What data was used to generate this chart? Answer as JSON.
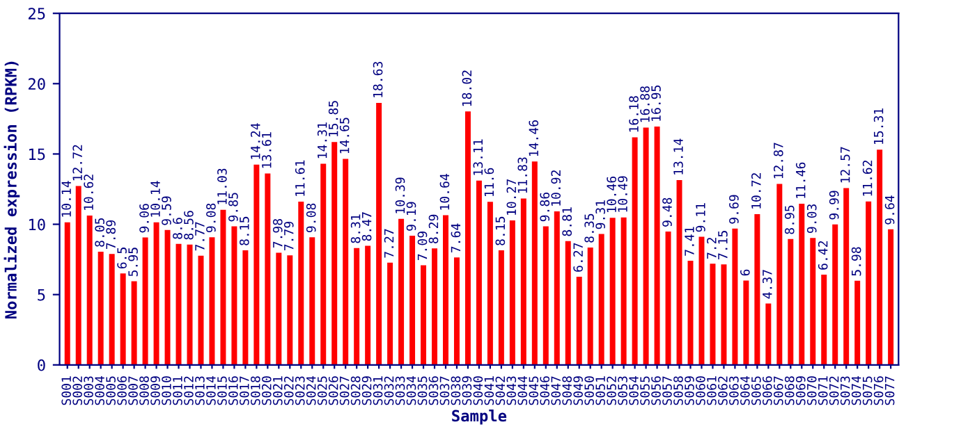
{
  "chart_data": {
    "type": "bar",
    "xlabel": "Sample",
    "ylabel": "Normalized expression (RPKM)",
    "categories": [
      "S001",
      "S002",
      "S003",
      "S004",
      "S005",
      "S006",
      "S007",
      "S008",
      "S009",
      "S010",
      "S011",
      "S012",
      "S013",
      "S014",
      "S015",
      "S016",
      "S017",
      "S018",
      "S020",
      "S021",
      "S022",
      "S023",
      "S024",
      "S025",
      "S026",
      "S027",
      "S028",
      "S029",
      "S031",
      "S032",
      "S033",
      "S034",
      "S035",
      "S036",
      "S037",
      "S038",
      "S039",
      "S040",
      "S041",
      "S042",
      "S043",
      "S044",
      "S045",
      "S046",
      "S047",
      "S048",
      "S049",
      "S050",
      "S051",
      "S052",
      "S053",
      "S054",
      "S055",
      "S056",
      "S057",
      "S058",
      "S059",
      "S060",
      "S061",
      "S062",
      "S063",
      "S064",
      "S065",
      "S066",
      "S067",
      "S068",
      "S069",
      "S070",
      "S071",
      "S072",
      "S073",
      "S074",
      "S075",
      "S076",
      "S077"
    ],
    "values": [
      10.14,
      12.72,
      10.62,
      8.05,
      7.89,
      6.5,
      5.95,
      9.06,
      10.14,
      9.59,
      8.6,
      8.56,
      7.77,
      9.08,
      11.03,
      9.85,
      8.15,
      14.24,
      13.61,
      7.98,
      7.79,
      11.61,
      9.08,
      14.31,
      15.85,
      14.65,
      8.31,
      8.47,
      18.63,
      7.27,
      10.39,
      9.19,
      7.09,
      8.29,
      10.64,
      7.64,
      18.02,
      13.11,
      11.6,
      8.15,
      10.27,
      11.83,
      14.46,
      9.86,
      10.92,
      8.81,
      6.27,
      8.35,
      9.31,
      10.46,
      10.49,
      16.18,
      16.88,
      16.95,
      9.48,
      13.14,
      7.41,
      9.11,
      7.2,
      7.15,
      9.69,
      6,
      10.72,
      4.37,
      12.87,
      8.95,
      11.46,
      9.03,
      6.42,
      9.99,
      12.57,
      5.98,
      11.62,
      15.31,
      9.64
    ],
    "color": "#ff0000",
    "ylim": [
      0,
      25
    ],
    "yticks": [
      0,
      5,
      10,
      15,
      20,
      25
    ],
    "grid": false,
    "data_labels": true
  }
}
